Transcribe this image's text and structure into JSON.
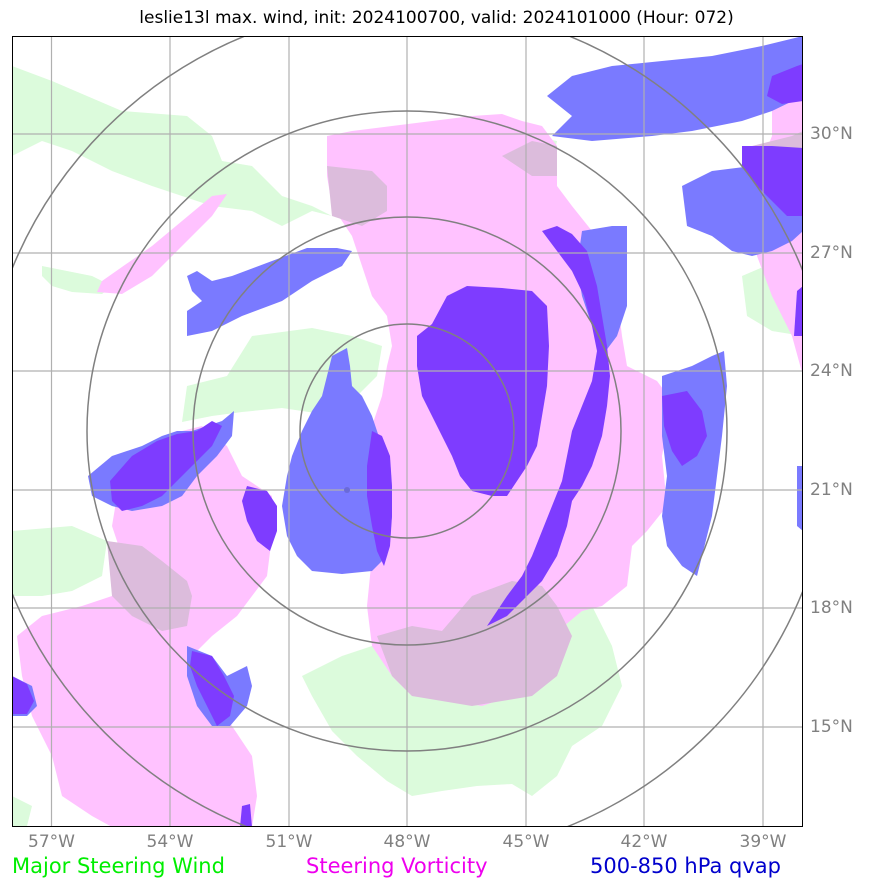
{
  "title": "leslie13l max. wind, init: 2024100700, valid: 2024101000 (Hour: 072)",
  "x_ticks": [
    "57°W",
    "54°W",
    "51°W",
    "48°W",
    "45°W",
    "42°W",
    "39°W"
  ],
  "y_ticks": [
    "30°N",
    "27°N",
    "24°N",
    "21°N",
    "18°N",
    "15°N"
  ],
  "legend": {
    "wind": {
      "label": "Major Steering Wind",
      "color": "#00ee00"
    },
    "vorticity": {
      "label": "Steering Vorticity",
      "color": "#ee00ee"
    },
    "qvap": {
      "label": "500-850 hPa qvap",
      "color": "#0000cc"
    }
  },
  "layer_colors": {
    "wind_fill": "#dcfbdc",
    "vorticity_fill": "#ffc2ff",
    "overlap_fill": "#dcbcdc",
    "qvap_fill": "#7a7aff",
    "qvap_strong_fill": "#7e3cff",
    "grid": "#b0b0b0",
    "range_rings": "#808080"
  },
  "map": {
    "lon_range": [
      -58,
      -38
    ],
    "lat_range": [
      13,
      33
    ],
    "storm_center": {
      "lon": -49.5,
      "lat": 21.0
    }
  }
}
